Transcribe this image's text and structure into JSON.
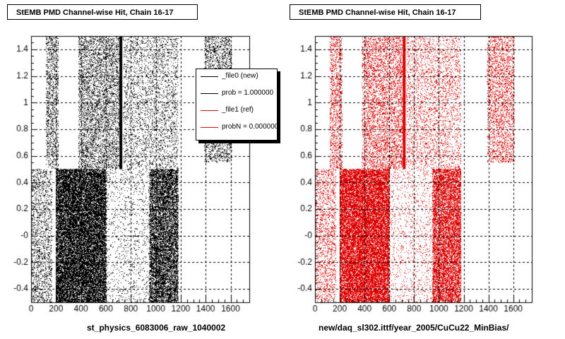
{
  "footer_text": "",
  "chart_data": [
    {
      "type": "scatter",
      "title": "StEMB PMD Channel-wise Hit, Chain 16-17",
      "xlabel": "st_physics_6083006_raw_1040002",
      "ylabel": "",
      "xlim": [
        0,
        1750
      ],
      "ylim": [
        -0.5,
        1.5
      ],
      "xticks": [
        0,
        200,
        400,
        600,
        800,
        1000,
        1200,
        1400,
        1600
      ],
      "yticks": [
        "-0.4",
        "-0.2",
        "-0",
        "0.2",
        "0.4",
        "0.6",
        "0.8",
        "1",
        "1.2",
        "1.4"
      ],
      "grid": true,
      "marker_color": "#000000",
      "series": [
        {
          "name": "_file0 (new)",
          "regions": [
            {
              "x": [
                0,
                170
              ],
              "y": [
                -0.5,
                0.5
              ],
              "density": 0.8
            },
            {
              "x": [
                200,
                600
              ],
              "y": [
                -0.5,
                0.5
              ],
              "density": 4.5
            },
            {
              "x": [
                600,
                950
              ],
              "y": [
                -0.5,
                0.5
              ],
              "density": 0.25
            },
            {
              "x": [
                950,
                1180
              ],
              "y": [
                -0.5,
                0.5
              ],
              "density": 3.2
            },
            {
              "x": [
                120,
                220
              ],
              "y": [
                0.5,
                1.5
              ],
              "density": 1.0
            },
            {
              "x": [
                380,
                720
              ],
              "y": [
                0.5,
                1.5
              ],
              "density": 1.1
            },
            {
              "x": [
                740,
                1180
              ],
              "y": [
                0.5,
                1.5
              ],
              "density": 0.55
            },
            {
              "x": [
                1390,
                1610
              ],
              "y": [
                0.55,
                1.5
              ],
              "density": 1.0
            }
          ],
          "vertical_line": {
            "x": 720,
            "y": [
              0.5,
              1.5
            ]
          }
        }
      ],
      "legend": {
        "position": "top-right",
        "entries": [
          {
            "label": "_file0 (new)",
            "color": "#000000"
          },
          {
            "label": "prob = 1.000000",
            "color": "#000000"
          },
          {
            "label": "_file1 (ref)",
            "color": "#ff0000"
          },
          {
            "label": "probN = 0.000000",
            "color": "#ff0000"
          }
        ]
      }
    },
    {
      "type": "scatter",
      "title": "StEMB PMD Channel-wise Hit, Chain 16-17",
      "xlabel": "new/daq_sl302.ittf/year_2005/CuCu22_MinBias/",
      "ylabel": "",
      "xlim": [
        0,
        1750
      ],
      "ylim": [
        -0.5,
        1.5
      ],
      "xticks": [
        0,
        200,
        400,
        600,
        800,
        1000,
        1200,
        1400,
        1600
      ],
      "yticks": [
        "-0.4",
        "-0.2",
        "-0",
        "0.2",
        "0.4",
        "0.6",
        "0.8",
        "1",
        "1.2",
        "1.4"
      ],
      "grid": true,
      "marker_color": "#dd0000",
      "series": [
        {
          "name": "_file1 (ref)",
          "regions": [
            {
              "x": [
                0,
                170
              ],
              "y": [
                -0.5,
                0.5
              ],
              "density": 0.8
            },
            {
              "x": [
                200,
                600
              ],
              "y": [
                -0.5,
                0.5
              ],
              "density": 4.5
            },
            {
              "x": [
                600,
                950
              ],
              "y": [
                -0.5,
                0.5
              ],
              "density": 0.25
            },
            {
              "x": [
                950,
                1180
              ],
              "y": [
                -0.5,
                0.5
              ],
              "density": 3.2
            },
            {
              "x": [
                120,
                220
              ],
              "y": [
                0.5,
                1.5
              ],
              "density": 1.0
            },
            {
              "x": [
                380,
                720
              ],
              "y": [
                0.5,
                1.5
              ],
              "density": 1.1
            },
            {
              "x": [
                740,
                1180
              ],
              "y": [
                0.5,
                1.5
              ],
              "density": 0.55
            },
            {
              "x": [
                1390,
                1610
              ],
              "y": [
                0.55,
                1.5
              ],
              "density": 1.0
            }
          ],
          "vertical_line": {
            "x": 720,
            "y": [
              0.5,
              1.5
            ]
          }
        }
      ]
    }
  ]
}
